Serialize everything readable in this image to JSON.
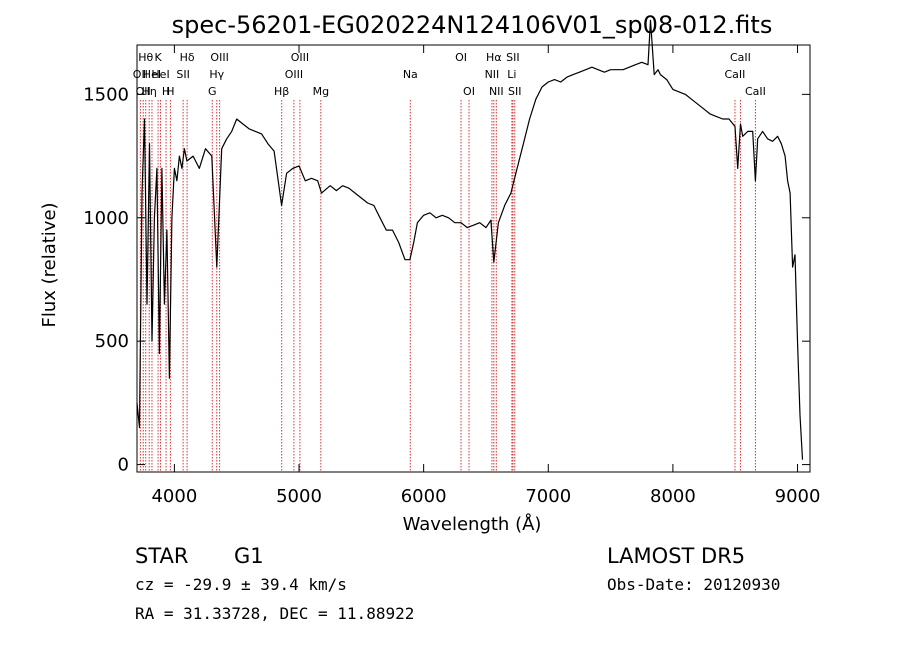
{
  "chart_data": {
    "type": "line",
    "title": "spec-56201-EG020224N124106V01_sp08-012.fits",
    "xlabel": "Wavelength (Å)",
    "ylabel": "Flux (relative)",
    "xlim": [
      3700,
      9100
    ],
    "ylim": [
      -30,
      1700
    ],
    "xticks": [
      4000,
      5000,
      6000,
      7000,
      8000,
      9000
    ],
    "yticks": [
      0,
      500,
      1000,
      1500
    ],
    "grid": false,
    "line_color": "#000000",
    "marker_color": "#e03030",
    "series": [
      {
        "x": [
          3700,
          3720,
          3740,
          3760,
          3780,
          3800,
          3820,
          3840,
          3860,
          3880,
          3900,
          3920,
          3940,
          3960,
          3980,
          4000,
          4020,
          4040,
          4060,
          4080,
          4100,
          4150,
          4200,
          4250,
          4300,
          4340,
          4380,
          4420,
          4460,
          4500,
          4550,
          4600,
          4650,
          4700,
          4750,
          4800,
          4860,
          4900,
          4950,
          5000,
          5050,
          5100,
          5150,
          5180,
          5250,
          5300,
          5350,
          5400,
          5450,
          5500,
          5550,
          5600,
          5650,
          5700,
          5750,
          5800,
          5850,
          5890,
          5920,
          5950,
          6000,
          6050,
          6100,
          6150,
          6200,
          6250,
          6300,
          6350,
          6400,
          6450,
          6500,
          6540,
          6563,
          6600,
          6650,
          6700,
          6750,
          6800,
          6850,
          6900,
          6950,
          7000,
          7050,
          7100,
          7150,
          7200,
          7250,
          7300,
          7350,
          7400,
          7450,
          7500,
          7550,
          7600,
          7650,
          7700,
          7750,
          7800,
          7820,
          7850,
          7880,
          7900,
          7950,
          8000,
          8050,
          8100,
          8150,
          8200,
          8250,
          8300,
          8350,
          8400,
          8450,
          8498,
          8520,
          8542,
          8560,
          8600,
          8640,
          8662,
          8680,
          8720,
          8760,
          8800,
          8840,
          8870,
          8900,
          8920,
          8940,
          8960,
          8980,
          9000,
          9020,
          9040
        ],
        "y": [
          250,
          150,
          1100,
          1400,
          650,
          1300,
          500,
          1000,
          1200,
          450,
          1200,
          650,
          950,
          350,
          1000,
          1200,
          1150,
          1250,
          1200,
          1280,
          1230,
          1250,
          1200,
          1280,
          1250,
          800,
          1280,
          1320,
          1350,
          1400,
          1380,
          1360,
          1350,
          1340,
          1300,
          1270,
          1050,
          1180,
          1200,
          1210,
          1150,
          1160,
          1150,
          1100,
          1130,
          1110,
          1130,
          1120,
          1100,
          1080,
          1060,
          1050,
          1000,
          950,
          950,
          900,
          830,
          830,
          900,
          980,
          1010,
          1020,
          1000,
          1010,
          1000,
          980,
          980,
          960,
          970,
          980,
          960,
          990,
          820,
          980,
          1050,
          1100,
          1200,
          1300,
          1400,
          1480,
          1530,
          1550,
          1560,
          1550,
          1570,
          1580,
          1590,
          1600,
          1610,
          1600,
          1590,
          1600,
          1600,
          1600,
          1610,
          1620,
          1630,
          1620,
          1800,
          1580,
          1600,
          1580,
          1560,
          1520,
          1510,
          1500,
          1480,
          1460,
          1440,
          1420,
          1410,
          1400,
          1400,
          1370,
          1200,
          1380,
          1330,
          1350,
          1350,
          1150,
          1320,
          1350,
          1320,
          1310,
          1330,
          1300,
          1250,
          1150,
          1100,
          800,
          850,
          500,
          200,
          20
        ]
      }
    ],
    "line_markers": [
      {
        "x": 3727,
        "labels": [
          "OII"
        ],
        "row": 2
      },
      {
        "x": 3750,
        "labels": [
          "OII"
        ],
        "row": 3
      },
      {
        "x": 3770,
        "labels": [
          "Hθ"
        ],
        "row": 1
      },
      {
        "x": 3798,
        "labels": [
          "Hη"
        ],
        "row": 3
      },
      {
        "x": 3820,
        "labels": [
          "HeI"
        ],
        "row": 2
      },
      {
        "x": 3869,
        "labels": [
          "K"
        ],
        "row": 1
      },
      {
        "x": 3889,
        "labels": [
          "HeI"
        ],
        "row": 2
      },
      {
        "x": 3933,
        "labels": [
          "H"
        ],
        "row": 3
      },
      {
        "x": 3968,
        "labels": [
          "H"
        ],
        "row": 3
      },
      {
        "x": 4070,
        "labels": [
          "SII"
        ],
        "row": 2
      },
      {
        "x": 4102,
        "labels": [
          "Hδ"
        ],
        "row": 1
      },
      {
        "x": 4304,
        "labels": [
          "G"
        ],
        "row": 3
      },
      {
        "x": 4340,
        "labels": [
          "Hγ"
        ],
        "row": 2
      },
      {
        "x": 4363,
        "labels": [
          "OIII"
        ],
        "row": 1
      },
      {
        "x": 4861,
        "labels": [
          "Hβ"
        ],
        "row": 3
      },
      {
        "x": 4959,
        "labels": [
          "OIII"
        ],
        "row": 2
      },
      {
        "x": 5007,
        "labels": [
          "OIII"
        ],
        "row": 1
      },
      {
        "x": 5175,
        "labels": [
          "Mg"
        ],
        "row": 3
      },
      {
        "x": 5893,
        "labels": [
          "Na"
        ],
        "row": 2
      },
      {
        "x": 6300,
        "labels": [
          "OI"
        ],
        "row": 1
      },
      {
        "x": 6364,
        "labels": [
          "OI"
        ],
        "row": 3
      },
      {
        "x": 6548,
        "labels": [
          "NII"
        ],
        "row": 2
      },
      {
        "x": 6563,
        "labels": [
          "Hα"
        ],
        "row": 1
      },
      {
        "x": 6583,
        "labels": [
          "NII"
        ],
        "row": 3
      },
      {
        "x": 6708,
        "labels": [
          "Li"
        ],
        "row": 2
      },
      {
        "x": 6716,
        "labels": [
          "SII"
        ],
        "row": 1
      },
      {
        "x": 6731,
        "labels": [
          "SII"
        ],
        "row": 3
      },
      {
        "x": 8498,
        "labels": [
          "CaII"
        ],
        "row": 2
      },
      {
        "x": 8542,
        "labels": [
          "CaII"
        ],
        "row": 1
      },
      {
        "x": 8662,
        "labels": [
          "CaII"
        ],
        "row": 3
      }
    ]
  },
  "info": {
    "class": "STAR",
    "subclass": "G1",
    "survey": "LAMOST DR5",
    "cz": "cz = -29.9 ± 39.4 km/s",
    "obs_date": "Obs-Date: 20120930",
    "coords": "RA =  31.33728, DEC =  11.88922"
  }
}
